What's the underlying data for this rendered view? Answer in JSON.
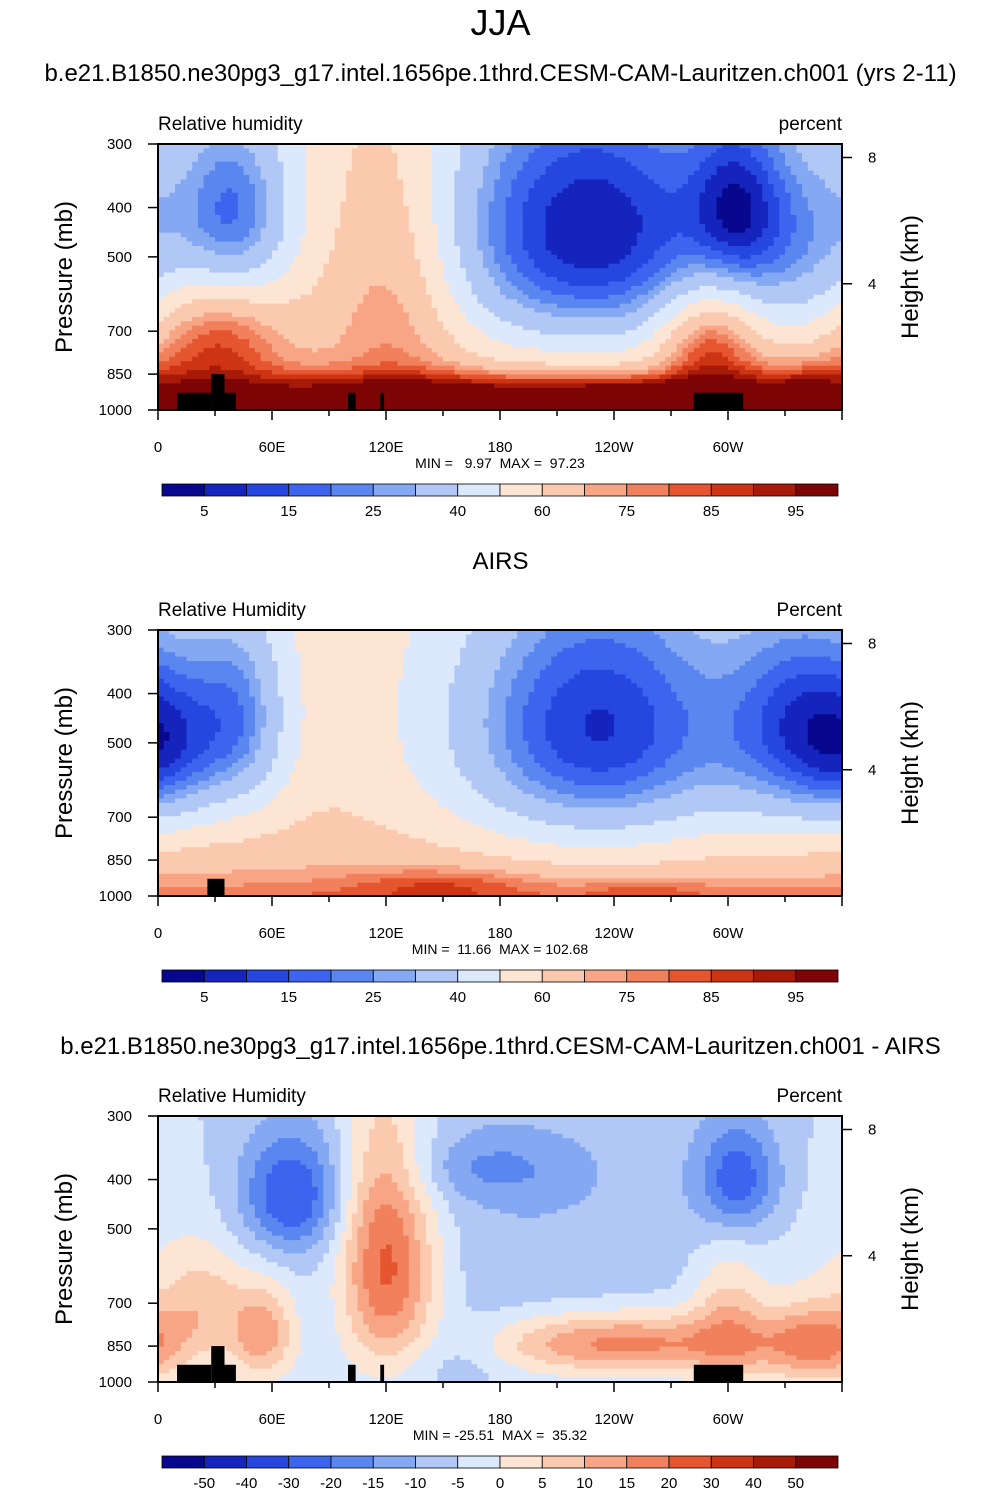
{
  "figure": {
    "season": "JJA",
    "case_title": "b.e21.B1850.ne30pg3_g17.intel.1656pe.1thrd.CESM-CAM-Lauritzen.ch001 (yrs 2-11)",
    "obs_title": "AIRS",
    "diff_title": "b.e21.B1850.ne30pg3_g17.intel.1656pe.1thrd.CESM-CAM-Lauritzen.ch001 - AIRS"
  },
  "colors": {
    "fields": [
      "#08088e",
      "#1424bd",
      "#2646e0",
      "#3c64ee",
      "#5a86ef",
      "#84a8f2",
      "#b1c8f6",
      "#dce8fb",
      "#fde5d4",
      "#fbc9ae",
      "#f7a584",
      "#f1805c",
      "#e5552f",
      "#cc3414",
      "#a71a08",
      "#7e0505"
    ],
    "terrain": "#000000"
  },
  "chart_data": [
    {
      "type": "contour",
      "panel": "model",
      "left_label": "Relative humidity",
      "right_label": "percent",
      "ylabel": "Pressure (mb)",
      "ylabel_right": "Height (km)",
      "x_ticks": [
        "0",
        "60E",
        "120E",
        "180",
        "120W",
        "60W"
      ],
      "x_tick_values": [
        0,
        60,
        120,
        180,
        240,
        300
      ],
      "xlim": [
        0,
        360
      ],
      "y_ticks": [
        "300",
        "400",
        "500",
        "700",
        "850",
        "1000"
      ],
      "y_tick_values": [
        300,
        400,
        500,
        700,
        850,
        1000
      ],
      "ylim": [
        1000,
        300
      ],
      "right_ticks": [
        "8",
        "4"
      ],
      "right_tick_values": [
        8,
        4
      ],
      "min_max": "MIN =   9.97  MAX =  97.23",
      "colorbar_labels": [
        "5",
        "15",
        "25",
        "40",
        "60",
        "75",
        "85",
        "95"
      ],
      "colorbar_levels": [
        5,
        10,
        15,
        20,
        25,
        30,
        40,
        50,
        60,
        70,
        75,
        80,
        85,
        90,
        95
      ],
      "terrain_blocks": [
        [
          10,
          20,
          925
        ],
        [
          20,
          28,
          925
        ],
        [
          28,
          35,
          850
        ],
        [
          35,
          41,
          925
        ],
        [
          100,
          104,
          925
        ],
        [
          117,
          119,
          925
        ],
        [
          282,
          308,
          925
        ]
      ],
      "features": [
        {
          "lon": 0,
          "p": 1000,
          "val": 82
        },
        {
          "lon": 360,
          "p": 1000,
          "val": 82
        },
        {
          "lon": 180,
          "p": 300,
          "val": 55
        },
        {
          "lon": 40,
          "p": 420,
          "val": -38,
          "sx": 22,
          "sy": 140
        },
        {
          "lon": 228,
          "p": 450,
          "val": -52,
          "sx": 60,
          "sy": 210
        },
        {
          "lon": 305,
          "p": 400,
          "val": -28,
          "sx": 18,
          "sy": 120
        },
        {
          "lon": 345,
          "p": 470,
          "val": -22,
          "sx": 25,
          "sy": 170
        },
        {
          "lon": 125,
          "p": 550,
          "val": 20,
          "sx": 25,
          "sy": 260
        },
        {
          "lon": 30,
          "p": 720,
          "val": 25,
          "sx": 25,
          "sy": 150
        },
        {
          "lon": 290,
          "p": 740,
          "val": 30,
          "sx": 18,
          "sy": 140
        },
        {
          "lon": 180,
          "p": 930,
          "val": 30,
          "sx": 140,
          "sy": 60
        },
        {
          "lon": 255,
          "p": 930,
          "val": 10,
          "sx": 30,
          "sy": 40
        },
        {
          "lon": 340,
          "p": 900,
          "val": 15,
          "sx": 20,
          "sy": 80
        }
      ],
      "base": {
        "surface": 82,
        "depth": 230,
        "upper": 55
      }
    },
    {
      "type": "contour",
      "panel": "obs",
      "left_label": "Relative Humidity",
      "right_label": "Percent",
      "ylabel": "Pressure (mb)",
      "ylabel_right": "Height (km)",
      "x_ticks": [
        "0",
        "60E",
        "120E",
        "180",
        "120W",
        "60W"
      ],
      "x_tick_values": [
        0,
        60,
        120,
        180,
        240,
        300
      ],
      "xlim": [
        0,
        360
      ],
      "y_ticks": [
        "300",
        "400",
        "500",
        "700",
        "850",
        "1000"
      ],
      "y_tick_values": [
        300,
        400,
        500,
        700,
        850,
        1000
      ],
      "ylim": [
        1000,
        300
      ],
      "right_ticks": [
        "8",
        "4"
      ],
      "right_tick_values": [
        8,
        4
      ],
      "min_max": "MIN =  11.66  MAX = 102.68",
      "colorbar_labels": [
        "5",
        "15",
        "25",
        "40",
        "60",
        "75",
        "85",
        "95"
      ],
      "colorbar_levels": [
        5,
        10,
        15,
        20,
        25,
        30,
        40,
        50,
        60,
        70,
        75,
        80,
        85,
        90,
        95
      ],
      "terrain_blocks": [
        [
          26,
          35,
          925
        ]
      ],
      "features": [
        {
          "lon": 0,
          "p": 1000,
          "val": 80
        },
        {
          "lon": 360,
          "p": 1000,
          "val": 80
        },
        {
          "lon": 180,
          "p": 300,
          "val": 58
        },
        {
          "lon": 42,
          "p": 450,
          "val": -35,
          "sx": 20,
          "sy": 160
        },
        {
          "lon": 232,
          "p": 470,
          "val": -50,
          "sx": 58,
          "sy": 220
        },
        {
          "lon": 340,
          "p": 470,
          "val": -38,
          "sx": 28,
          "sy": 170
        },
        {
          "lon": 5,
          "p": 520,
          "val": -20,
          "sx": 18,
          "sy": 140
        },
        {
          "lon": 150,
          "p": 950,
          "val": 12,
          "sx": 35,
          "sy": 50
        },
        {
          "lon": 255,
          "p": 970,
          "val": 8,
          "sx": 25,
          "sy": 30
        }
      ],
      "base": {
        "surface": 80,
        "depth": 200,
        "upper": 58
      }
    },
    {
      "type": "contour",
      "panel": "difference",
      "left_label": "Relative Humidity",
      "right_label": "Percent",
      "ylabel": "Pressure (mb)",
      "ylabel_right": "Height (km)",
      "x_ticks": [
        "0",
        "60E",
        "120E",
        "180",
        "120W",
        "60W"
      ],
      "x_tick_values": [
        0,
        60,
        120,
        180,
        240,
        300
      ],
      "xlim": [
        0,
        360
      ],
      "y_ticks": [
        "300",
        "400",
        "500",
        "700",
        "850",
        "1000"
      ],
      "y_tick_values": [
        300,
        400,
        500,
        700,
        850,
        1000
      ],
      "ylim": [
        1000,
        300
      ],
      "right_ticks": [
        "8",
        "4"
      ],
      "right_tick_values": [
        8,
        4
      ],
      "min_max": "MIN = -25.51  MAX =  35.32",
      "colorbar_labels": [
        "-50",
        "-40",
        "-30",
        "-20",
        "-15",
        "-10",
        "-5",
        "0",
        "5",
        "10",
        "15",
        "20",
        "30",
        "40",
        "50"
      ],
      "colorbar_levels": [
        -50,
        -40,
        -30,
        -20,
        -15,
        -10,
        -5,
        0,
        5,
        10,
        15,
        20,
        30,
        40,
        50
      ],
      "terrain_blocks": [
        [
          10,
          20,
          925
        ],
        [
          20,
          28,
          925
        ],
        [
          28,
          35,
          850
        ],
        [
          35,
          41,
          925
        ],
        [
          100,
          104,
          925
        ],
        [
          117,
          119,
          925
        ],
        [
          282,
          308,
          925
        ]
      ],
      "features": [
        {
          "lon": 0,
          "p": 700,
          "val": 5,
          "sx": 25,
          "sy": 250
        },
        {
          "lon": 25,
          "p": 700,
          "val": 10,
          "sx": 15,
          "sy": 120
        },
        {
          "lon": 55,
          "p": 800,
          "val": 18,
          "sx": 12,
          "sy": 120
        },
        {
          "lon": 70,
          "p": 430,
          "val": -20,
          "sx": 18,
          "sy": 80
        },
        {
          "lon": 118,
          "p": 550,
          "val": 20,
          "sx": 16,
          "sy": 220
        },
        {
          "lon": 130,
          "p": 650,
          "val": 10,
          "sx": 20,
          "sy": 200
        },
        {
          "lon": 175,
          "p": 380,
          "val": -8,
          "sx": 30,
          "sy": 40
        },
        {
          "lon": 245,
          "p": 840,
          "val": 22,
          "sx": 50,
          "sy": 80
        },
        {
          "lon": 305,
          "p": 400,
          "val": -18,
          "sx": 15,
          "sy": 70
        },
        {
          "lon": 300,
          "p": 750,
          "val": 12,
          "sx": 14,
          "sy": 160
        },
        {
          "lon": 345,
          "p": 840,
          "val": 18,
          "sx": 20,
          "sy": 100
        },
        {
          "lon": 155,
          "p": 880,
          "val": -6,
          "sx": 20,
          "sy": 120
        },
        {
          "lon": 200,
          "p": 500,
          "val": -4,
          "sx": 60,
          "sy": 200
        }
      ],
      "base": {
        "surface": 0,
        "depth": 200,
        "upper": 0
      }
    }
  ]
}
